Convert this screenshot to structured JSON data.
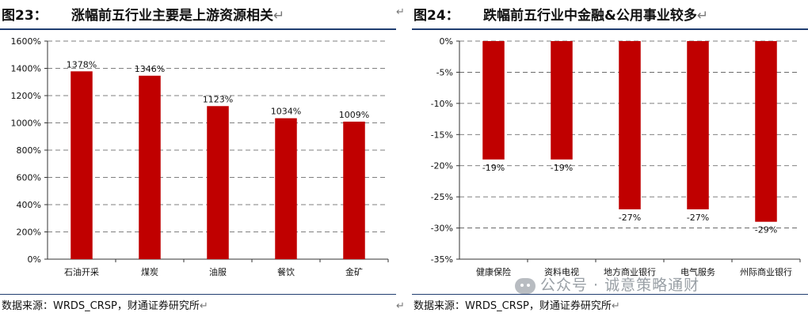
{
  "return_mark": "↵",
  "left": {
    "fig_label": "图23：",
    "title": "涨幅前五行业主要是上游资源相关",
    "source": "数据来源：WRDS_CRSP，财通证券研究所",
    "chart_data": {
      "type": "bar",
      "categories": [
        "石油开采",
        "煤炭",
        "油服",
        "餐饮",
        "金矿"
      ],
      "values": [
        1378,
        1346,
        1123,
        1034,
        1009
      ],
      "value_labels": [
        "1378%",
        "1346%",
        "1123%",
        "1034%",
        "1009%"
      ],
      "ylim": [
        0,
        1600
      ],
      "yticks": [
        0,
        200,
        400,
        600,
        800,
        1000,
        1200,
        1400,
        1600
      ],
      "ytick_labels": [
        "0%",
        "200%",
        "400%",
        "600%",
        "800%",
        "1000%",
        "1200%",
        "1400%",
        "1600%"
      ],
      "bar_color": "#c00000",
      "grid": "dashed",
      "xlabel": "",
      "ylabel": ""
    }
  },
  "right": {
    "fig_label": "图24：",
    "title": "跌幅前五行业中金融&公用事业较多",
    "source": "数据来源：WRDS_CRSP，财通证券研究所",
    "chart_data": {
      "type": "bar",
      "categories": [
        "健康保险",
        "资料电视",
        "地方商业银行",
        "电气服务",
        "州际商业银行"
      ],
      "values": [
        -19,
        -19,
        -27,
        -27,
        -29
      ],
      "value_labels": [
        "-19%",
        "-19%",
        "-27%",
        "-27%",
        "-29%"
      ],
      "ylim": [
        -35,
        0
      ],
      "yticks": [
        0,
        -5,
        -10,
        -15,
        -20,
        -25,
        -30,
        -35
      ],
      "ytick_labels": [
        "0%",
        "-5%",
        "-10%",
        "-15%",
        "-20%",
        "-25%",
        "-30%",
        "-35%"
      ],
      "bar_color": "#c00000",
      "grid": "dashed",
      "xlabel": "",
      "ylabel": ""
    }
  },
  "watermark": "公众号 · 诚意策略通财"
}
